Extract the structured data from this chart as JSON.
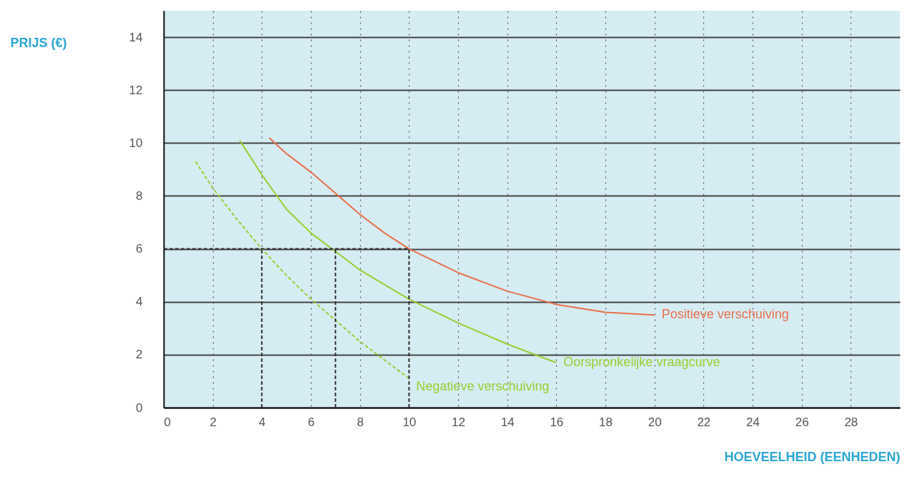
{
  "chart_data": {
    "type": "line",
    "xlabel": "HOEVEELHEID (EENHEDEN)",
    "ylabel": "PRIJS (€)",
    "xlim": [
      0,
      30
    ],
    "ylim": [
      0,
      15
    ],
    "xticks": [
      0,
      2,
      4,
      6,
      8,
      10,
      12,
      14,
      16,
      18,
      20,
      22,
      24,
      26,
      28
    ],
    "yticks": [
      0,
      2,
      4,
      6,
      8,
      10,
      12,
      14
    ],
    "grid": true,
    "marker": "none",
    "series": [
      {
        "name": "Positieve verschuiving",
        "color": "#e8704a",
        "line_style": "solid",
        "x": [
          4.3,
          5,
          6,
          7,
          8,
          9,
          10,
          12,
          14,
          16,
          18,
          20
        ],
        "values": [
          10.2,
          9.6,
          8.9,
          8.1,
          7.3,
          6.6,
          6,
          5.1,
          4.4,
          3.9,
          3.6,
          3.5
        ]
      },
      {
        "name": "Oorspronkelijke vraagcurve",
        "color": "#9acd32",
        "line_style": "solid",
        "x": [
          3.1,
          4,
          5,
          6,
          7,
          8,
          10,
          12,
          14,
          16
        ],
        "values": [
          10.1,
          8.8,
          7.5,
          6.6,
          5.9,
          5.2,
          4.1,
          3.2,
          2.4,
          1.7
        ]
      },
      {
        "name": "Negatieve verschuiving",
        "color": "#9acd32",
        "line_style": "dashed",
        "x": [
          1.3,
          2,
          3,
          4,
          5,
          6,
          7,
          8,
          9,
          10
        ],
        "values": [
          9.3,
          8.3,
          7.1,
          6,
          5,
          4.1,
          3.3,
          2.5,
          1.8,
          1.1
        ]
      },
      {
        "color": "#333333",
        "line_style": "dashed",
        "x": [
          0,
          10
        ],
        "values": [
          6,
          6
        ]
      },
      {
        "color": "#333333",
        "line_style": "dashed",
        "x": [
          4,
          4
        ],
        "values": [
          0,
          6
        ]
      },
      {
        "color": "#333333",
        "line_style": "dashed",
        "x": [
          7,
          7
        ],
        "values": [
          0,
          6
        ]
      },
      {
        "color": "#333333",
        "line_style": "dashed",
        "x": [
          10,
          10
        ],
        "values": [
          0,
          6
        ]
      }
    ]
  }
}
